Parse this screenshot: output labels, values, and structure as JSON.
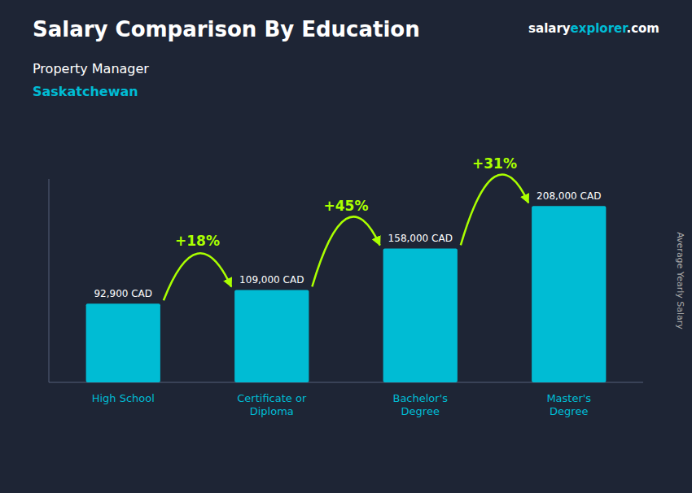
{
  "chart_data": {
    "type": "bar",
    "title": "Salary Comparison By Education",
    "subtitle": "Property Manager",
    "location": "Saskatchewan",
    "brand": [
      {
        "text": "salary",
        "color": "#ffffff"
      },
      {
        "text": "explorer",
        "color": "#00bcd4"
      },
      {
        "text": ".com",
        "color": "#ffffff"
      }
    ],
    "ylabel": "Average Yearly Salary",
    "categories": [
      "High School",
      "Certificate or\nDiploma",
      "Bachelor's\nDegree",
      "Master's\nDegree"
    ],
    "values": [
      92900,
      109000,
      158000,
      208000
    ],
    "value_labels": [
      "92,900 CAD",
      "109,000 CAD",
      "158,000 CAD",
      "208,000 CAD"
    ],
    "color": "#00bcd4",
    "changes": {
      "labels": [
        "+18%",
        "+45%",
        "+31%"
      ],
      "color": "#aaff00"
    },
    "ylim": [
      0,
      240000
    ],
    "data_labels": true,
    "tick_labels": "x",
    "grid": false
  }
}
